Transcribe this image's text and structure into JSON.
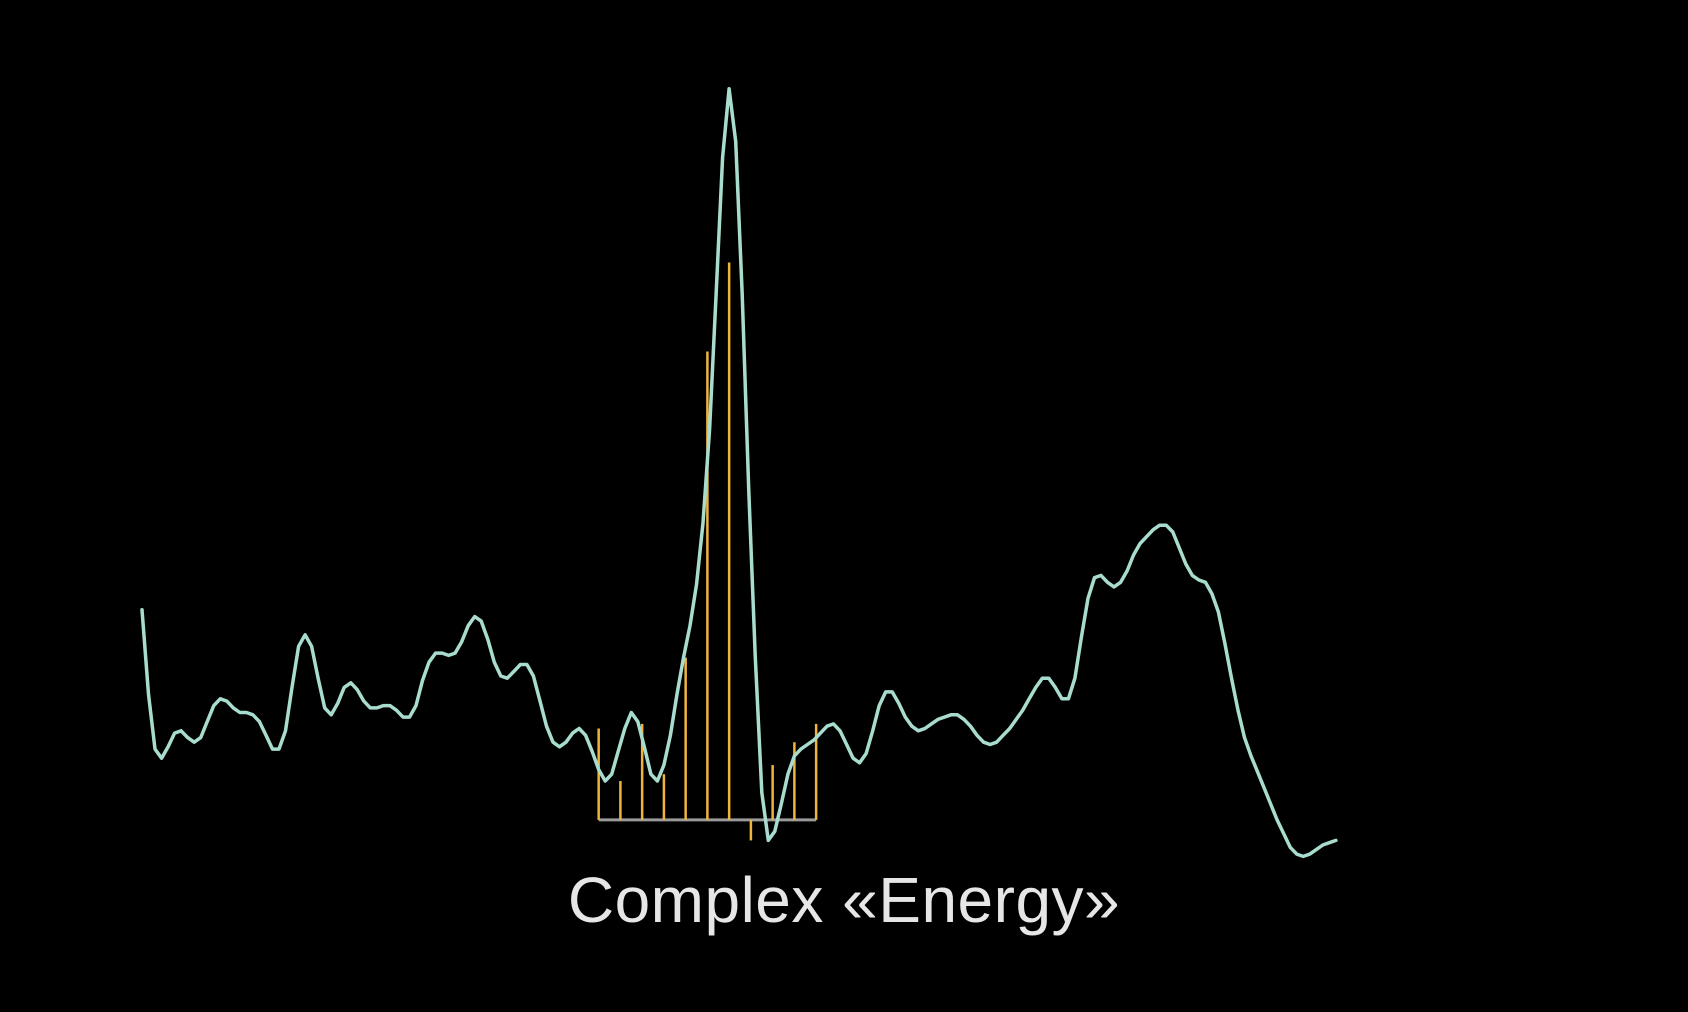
{
  "chart_data": {
    "type": "line",
    "title": "Complex «Energy»",
    "xlabel": "",
    "ylabel": "",
    "grid": false,
    "legend": "none",
    "xlim": [
      0,
      6.3
    ],
    "ylim": [
      -0.11,
      3.3
    ],
    "colors": {
      "background": "#000000",
      "signal": "#a8dccf",
      "stems": "#f0b43c",
      "baseline": "#9a9a9a",
      "title": "#e6e6e6"
    },
    "series": [
      {
        "type": "line",
        "values": [
          [
            0.0,
            0.92
          ],
          [
            0.03,
            0.55
          ],
          [
            0.06,
            0.31
          ],
          [
            0.09,
            0.27
          ],
          [
            0.12,
            0.32
          ],
          [
            0.15,
            0.38
          ],
          [
            0.18,
            0.39
          ],
          [
            0.21,
            0.36
          ],
          [
            0.24,
            0.34
          ],
          [
            0.27,
            0.36
          ],
          [
            0.3,
            0.43
          ],
          [
            0.33,
            0.5
          ],
          [
            0.36,
            0.53
          ],
          [
            0.39,
            0.52
          ],
          [
            0.42,
            0.49
          ],
          [
            0.45,
            0.47
          ],
          [
            0.48,
            0.47
          ],
          [
            0.51,
            0.46
          ],
          [
            0.54,
            0.43
          ],
          [
            0.57,
            0.37
          ],
          [
            0.6,
            0.31
          ],
          [
            0.63,
            0.31
          ],
          [
            0.66,
            0.39
          ],
          [
            0.69,
            0.58
          ],
          [
            0.72,
            0.76
          ],
          [
            0.75,
            0.81
          ],
          [
            0.78,
            0.76
          ],
          [
            0.81,
            0.62
          ],
          [
            0.84,
            0.49
          ],
          [
            0.87,
            0.46
          ],
          [
            0.9,
            0.51
          ],
          [
            0.93,
            0.58
          ],
          [
            0.96,
            0.6
          ],
          [
            0.99,
            0.57
          ],
          [
            1.02,
            0.52
          ],
          [
            1.05,
            0.49
          ],
          [
            1.08,
            0.49
          ],
          [
            1.11,
            0.5
          ],
          [
            1.14,
            0.5
          ],
          [
            1.17,
            0.48
          ],
          [
            1.2,
            0.45
          ],
          [
            1.23,
            0.45
          ],
          [
            1.26,
            0.5
          ],
          [
            1.29,
            0.61
          ],
          [
            1.32,
            0.69
          ],
          [
            1.35,
            0.73
          ],
          [
            1.38,
            0.73
          ],
          [
            1.41,
            0.72
          ],
          [
            1.44,
            0.73
          ],
          [
            1.47,
            0.78
          ],
          [
            1.5,
            0.85
          ],
          [
            1.53,
            0.89
          ],
          [
            1.56,
            0.87
          ],
          [
            1.59,
            0.79
          ],
          [
            1.62,
            0.69
          ],
          [
            1.65,
            0.63
          ],
          [
            1.68,
            0.62
          ],
          [
            1.71,
            0.65
          ],
          [
            1.74,
            0.68
          ],
          [
            1.77,
            0.68
          ],
          [
            1.8,
            0.63
          ],
          [
            1.83,
            0.52
          ],
          [
            1.86,
            0.41
          ],
          [
            1.89,
            0.34
          ],
          [
            1.92,
            0.32
          ],
          [
            1.95,
            0.34
          ],
          [
            1.98,
            0.38
          ],
          [
            2.01,
            0.4
          ],
          [
            2.04,
            0.37
          ],
          [
            2.07,
            0.3
          ],
          [
            2.1,
            0.22
          ],
          [
            2.13,
            0.17
          ],
          [
            2.16,
            0.2
          ],
          [
            2.19,
            0.3
          ],
          [
            2.22,
            0.4
          ],
          [
            2.25,
            0.47
          ],
          [
            2.28,
            0.43
          ],
          [
            2.31,
            0.32
          ],
          [
            2.34,
            0.2
          ],
          [
            2.37,
            0.17
          ],
          [
            2.4,
            0.24
          ],
          [
            2.43,
            0.37
          ],
          [
            2.46,
            0.55
          ],
          [
            2.49,
            0.71
          ],
          [
            2.52,
            0.85
          ],
          [
            2.55,
            1.03
          ],
          [
            2.58,
            1.3
          ],
          [
            2.61,
            1.71
          ],
          [
            2.64,
            2.3
          ],
          [
            2.67,
            2.9
          ],
          [
            2.7,
            3.2
          ],
          [
            2.73,
            2.97
          ],
          [
            2.76,
            2.3
          ],
          [
            2.79,
            1.45
          ],
          [
            2.82,
            0.72
          ],
          [
            2.85,
            0.12
          ],
          [
            2.88,
            -0.09
          ],
          [
            2.91,
            -0.05
          ],
          [
            2.94,
            0.07
          ],
          [
            2.97,
            0.2
          ],
          [
            3.0,
            0.28
          ],
          [
            3.03,
            0.31
          ],
          [
            3.06,
            0.33
          ],
          [
            3.09,
            0.35
          ],
          [
            3.12,
            0.38
          ],
          [
            3.15,
            0.41
          ],
          [
            3.18,
            0.42
          ],
          [
            3.21,
            0.39
          ],
          [
            3.24,
            0.33
          ],
          [
            3.27,
            0.27
          ],
          [
            3.3,
            0.25
          ],
          [
            3.33,
            0.29
          ],
          [
            3.36,
            0.39
          ],
          [
            3.39,
            0.5
          ],
          [
            3.42,
            0.56
          ],
          [
            3.45,
            0.56
          ],
          [
            3.48,
            0.51
          ],
          [
            3.51,
            0.45
          ],
          [
            3.54,
            0.41
          ],
          [
            3.57,
            0.39
          ],
          [
            3.6,
            0.4
          ],
          [
            3.63,
            0.42
          ],
          [
            3.66,
            0.44
          ],
          [
            3.69,
            0.45
          ],
          [
            3.72,
            0.46
          ],
          [
            3.75,
            0.46
          ],
          [
            3.78,
            0.44
          ],
          [
            3.81,
            0.41
          ],
          [
            3.84,
            0.37
          ],
          [
            3.87,
            0.34
          ],
          [
            3.9,
            0.33
          ],
          [
            3.93,
            0.34
          ],
          [
            3.96,
            0.37
          ],
          [
            3.99,
            0.4
          ],
          [
            4.02,
            0.44
          ],
          [
            4.05,
            0.48
          ],
          [
            4.08,
            0.53
          ],
          [
            4.11,
            0.58
          ],
          [
            4.14,
            0.62
          ],
          [
            4.17,
            0.62
          ],
          [
            4.2,
            0.58
          ],
          [
            4.23,
            0.53
          ],
          [
            4.26,
            0.53
          ],
          [
            4.29,
            0.62
          ],
          [
            4.32,
            0.8
          ],
          [
            4.35,
            0.97
          ],
          [
            4.38,
            1.06
          ],
          [
            4.41,
            1.07
          ],
          [
            4.44,
            1.04
          ],
          [
            4.47,
            1.02
          ],
          [
            4.5,
            1.04
          ],
          [
            4.53,
            1.09
          ],
          [
            4.56,
            1.16
          ],
          [
            4.59,
            1.21
          ],
          [
            4.62,
            1.24
          ],
          [
            4.65,
            1.27
          ],
          [
            4.68,
            1.29
          ],
          [
            4.71,
            1.29
          ],
          [
            4.74,
            1.26
          ],
          [
            4.77,
            1.19
          ],
          [
            4.8,
            1.12
          ],
          [
            4.83,
            1.07
          ],
          [
            4.86,
            1.05
          ],
          [
            4.89,
            1.04
          ],
          [
            4.92,
            0.99
          ],
          [
            4.95,
            0.91
          ],
          [
            4.98,
            0.77
          ],
          [
            5.01,
            0.62
          ],
          [
            5.04,
            0.48
          ],
          [
            5.07,
            0.36
          ],
          [
            5.1,
            0.28
          ],
          [
            5.13,
            0.21
          ],
          [
            5.16,
            0.14
          ],
          [
            5.19,
            0.07
          ],
          [
            5.22,
            0.0
          ],
          [
            5.25,
            -0.06
          ],
          [
            5.28,
            -0.12
          ],
          [
            5.31,
            -0.15
          ],
          [
            5.34,
            -0.16
          ],
          [
            5.37,
            -0.15
          ],
          [
            5.4,
            -0.13
          ],
          [
            5.43,
            -0.11
          ],
          [
            5.46,
            -0.1
          ],
          [
            5.49,
            -0.09
          ]
        ]
      },
      {
        "type": "stem",
        "x": [
          2.1,
          2.2,
          2.3,
          2.4,
          2.5,
          2.6,
          2.7,
          2.8,
          2.9,
          3.0,
          3.1
        ],
        "values": [
          0.4,
          0.17,
          0.42,
          0.2,
          0.71,
          2.05,
          2.44,
          -0.09,
          0.24,
          0.34,
          0.42
        ]
      }
    ],
    "baseline": {
      "y": 0,
      "x_range": [
        2.1,
        3.1
      ]
    }
  }
}
